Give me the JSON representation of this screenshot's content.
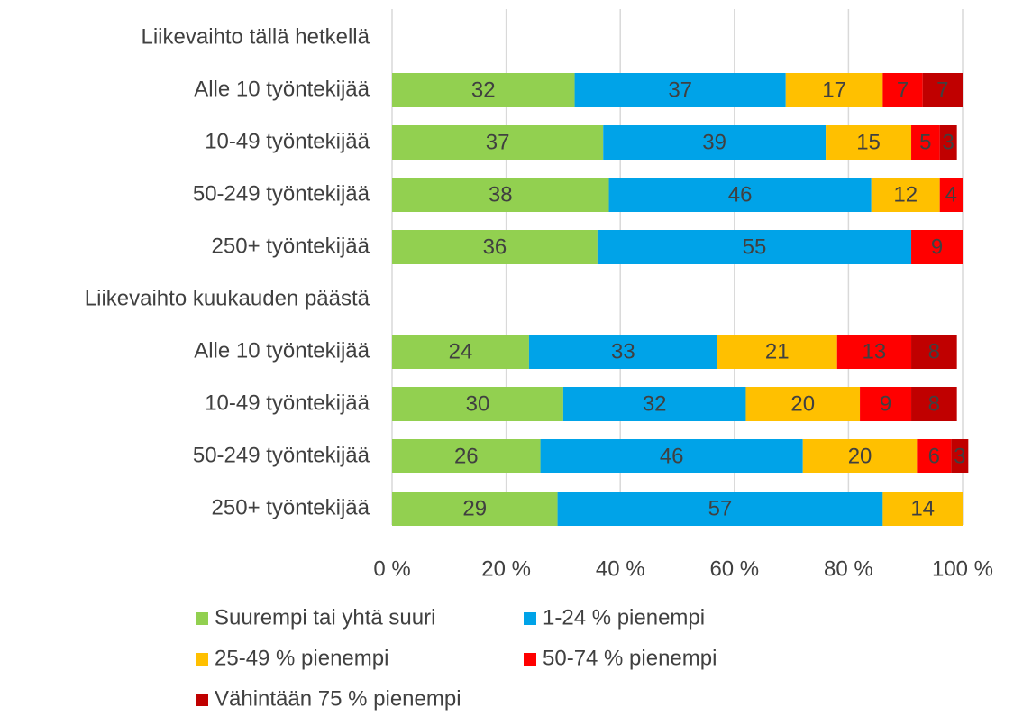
{
  "chart_data": {
    "type": "stacked-bar-horizontal",
    "categories": [
      "Liikevaihto tällä hetkellä",
      "Alle 10 työntekijää",
      "10-49 työntekijää",
      "50-249 työntekijää",
      "250+ työntekijää",
      "Liikevaihto kuukauden päästä",
      "Alle 10 työntekijää",
      "10-49 työntekijää",
      "50-249 työntekijää",
      "250+ työntekijää"
    ],
    "series": [
      {
        "name": "Suurempi tai yhtä suuri",
        "color": "#92d050",
        "values": [
          null,
          32,
          37,
          38,
          36,
          null,
          24,
          30,
          26,
          29
        ]
      },
      {
        "name": "1-24 % pienempi",
        "color": "#00a3e8",
        "values": [
          null,
          37,
          39,
          46,
          55,
          null,
          33,
          32,
          46,
          57
        ]
      },
      {
        "name": "25-49 % pienempi",
        "color": "#ffc000",
        "values": [
          null,
          17,
          15,
          12,
          null,
          null,
          21,
          20,
          20,
          14
        ]
      },
      {
        "name": "50-74 % pienempi",
        "color": "#ff0000",
        "values": [
          null,
          7,
          5,
          4,
          9,
          null,
          13,
          9,
          6,
          null
        ]
      },
      {
        "name": "Vähintään 75 % pienempi",
        "color": "#c00000",
        "values": [
          null,
          7,
          3,
          null,
          null,
          null,
          8,
          8,
          3,
          null
        ]
      }
    ],
    "xlim": [
      0,
      100
    ],
    "xticks": [
      {
        "value": 0,
        "label": "0 %"
      },
      {
        "value": 20,
        "label": "20 %"
      },
      {
        "value": 40,
        "label": "40 %"
      },
      {
        "value": 60,
        "label": "60 %"
      },
      {
        "value": 80,
        "label": "80 %"
      },
      {
        "value": 100,
        "label": "100 %"
      }
    ],
    "grid": true
  }
}
